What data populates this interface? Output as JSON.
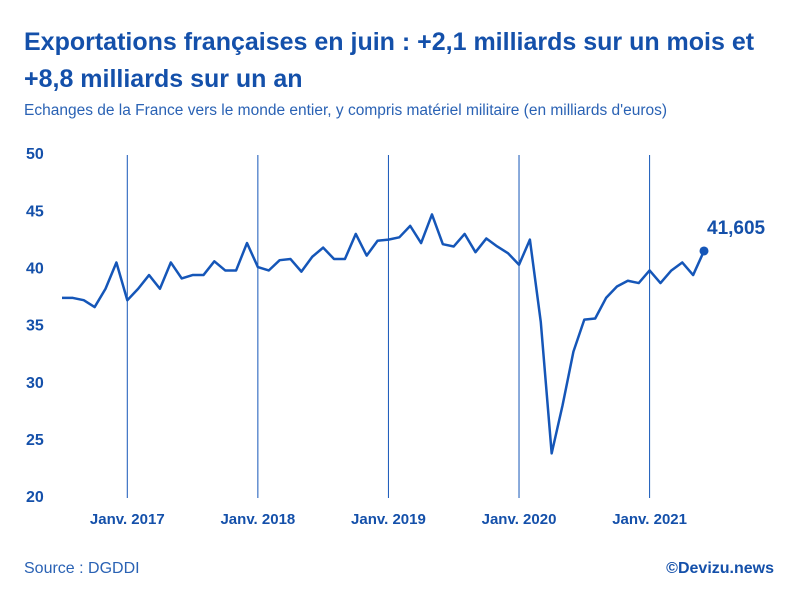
{
  "chart_data": {
    "type": "line",
    "title": "Exportations françaises en juin : +2,1 milliards sur un mois et +8,8 milliards sur un an",
    "subtitle": "Echanges de la France vers le monde entier, y compris matériel militaire (en milliards d'euros)",
    "source": "Source : DGDDI",
    "credit": "©Devizu.news",
    "categories": [
      null,
      null,
      null,
      null,
      null,
      null,
      "Janv. 2017",
      null,
      null,
      null,
      null,
      null,
      null,
      null,
      null,
      null,
      null,
      null,
      "Janv. 2018",
      null,
      null,
      null,
      null,
      null,
      null,
      null,
      null,
      null,
      null,
      null,
      "Janv. 2019",
      null,
      null,
      null,
      null,
      null,
      null,
      null,
      null,
      null,
      null,
      null,
      "Janv. 2020",
      null,
      null,
      null,
      null,
      null,
      null,
      null,
      null,
      null,
      null,
      null,
      "Janv. 2021",
      null,
      null,
      null,
      null,
      null
    ],
    "series": [
      {
        "name": "Exportations",
        "color": "#1556b8",
        "values": [
          37.5,
          37.5,
          37.3,
          36.7,
          38.3,
          40.6,
          37.3,
          38.3,
          39.5,
          38.3,
          40.6,
          39.2,
          39.5,
          39.5,
          40.7,
          39.9,
          39.9,
          42.3,
          40.2,
          39.9,
          40.8,
          40.9,
          39.8,
          41.1,
          41.9,
          40.9,
          40.9,
          43.1,
          41.2,
          42.5,
          42.6,
          42.8,
          43.8,
          42.3,
          44.8,
          42.2,
          42.0,
          43.1,
          41.5,
          42.7,
          42.0,
          41.4,
          40.4,
          42.6,
          35.4,
          23.9,
          28.1,
          32.8,
          35.6,
          35.7,
          37.5,
          38.5,
          39.0,
          38.8,
          39.9,
          38.8,
          39.9,
          40.6,
          39.5,
          41.605
        ],
        "value_labels": [
          null,
          null,
          null,
          null,
          null,
          null,
          null,
          null,
          null,
          null,
          null,
          null,
          null,
          null,
          null,
          null,
          null,
          null,
          null,
          null,
          null,
          null,
          null,
          null,
          null,
          null,
          null,
          null,
          null,
          null,
          null,
          null,
          null,
          null,
          null,
          null,
          null,
          null,
          null,
          null,
          null,
          null,
          null,
          null,
          null,
          null,
          null,
          null,
          null,
          null,
          null,
          null,
          null,
          null,
          null,
          null,
          null,
          null,
          null,
          "41,605"
        ]
      }
    ],
    "ylim": [
      20,
      50
    ],
    "yticks": [
      20,
      25,
      30,
      35,
      40,
      45,
      50
    ]
  }
}
